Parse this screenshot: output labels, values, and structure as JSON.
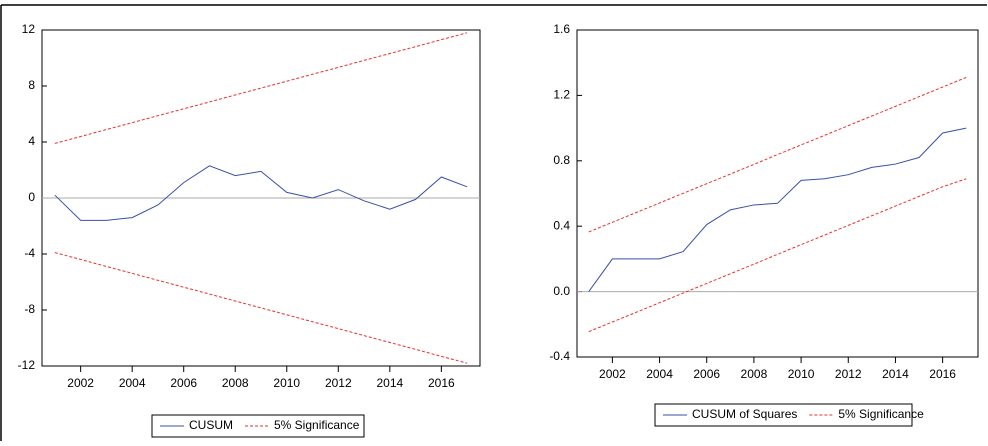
{
  "chart_data": [
    {
      "type": "line",
      "x": [
        2001,
        2002,
        2003,
        2004,
        2005,
        2006,
        2007,
        2008,
        2009,
        2010,
        2011,
        2012,
        2013,
        2014,
        2015,
        2016,
        2017
      ],
      "xlim": [
        2000.5,
        2017.5
      ],
      "xticks": [
        2002,
        2004,
        2006,
        2008,
        2010,
        2012,
        2014,
        2016
      ],
      "ylim": [
        -12,
        12
      ],
      "yticks": [
        -12,
        -8,
        -4,
        0,
        4,
        8,
        12
      ],
      "series": [
        {
          "name": "CUSUM",
          "color": "#3a4fa8",
          "values": [
            0.2,
            -1.6,
            -1.6,
            -1.4,
            -0.5,
            1.1,
            2.3,
            1.6,
            1.9,
            0.4,
            0.0,
            0.6,
            -0.2,
            -0.8,
            -0.1,
            1.5,
            0.8
          ]
        },
        {
          "name": "5% Significance",
          "color": "#e8312f",
          "dashed": true,
          "values": [
            3.9,
            4.39,
            4.89,
            5.38,
            5.88,
            6.37,
            6.86,
            7.36,
            7.85,
            8.34,
            8.84,
            9.33,
            9.83,
            10.32,
            10.81,
            11.31,
            11.8
          ],
          "lower": [
            -3.9,
            -4.39,
            -4.89,
            -5.38,
            -5.88,
            -6.37,
            -6.86,
            -7.36,
            -7.85,
            -8.34,
            -8.84,
            -9.33,
            -9.83,
            -10.32,
            -10.81,
            -11.31,
            -11.8
          ]
        }
      ]
    },
    {
      "type": "line",
      "x": [
        2001,
        2002,
        2003,
        2004,
        2005,
        2006,
        2007,
        2008,
        2009,
        2010,
        2011,
        2012,
        2013,
        2014,
        2015,
        2016,
        2017
      ],
      "xlim": [
        2000.5,
        2017.5
      ],
      "xticks": [
        2002,
        2004,
        2006,
        2008,
        2010,
        2012,
        2014,
        2016
      ],
      "ylim": [
        -0.4,
        1.6
      ],
      "yticks": [
        -0.4,
        {
          "value": 0,
          "label": "0.0"
        },
        0.4,
        0.8,
        1.2,
        1.6
      ],
      "series": [
        {
          "name": "CUSUM of Squares",
          "color": "#3a4fa8",
          "values": [
            0.0,
            0.2,
            0.2,
            0.2,
            0.245,
            0.41,
            0.5,
            0.53,
            0.54,
            0.68,
            0.69,
            0.715,
            0.76,
            0.78,
            0.82,
            0.97,
            1.0
          ]
        },
        {
          "name": "5% Significance",
          "color": "#e8312f",
          "dashed": true,
          "values": [
            0.365,
            0.424,
            0.483,
            0.542,
            0.601,
            0.66,
            0.719,
            0.778,
            0.838,
            0.897,
            0.956,
            1.015,
            1.074,
            1.133,
            1.192,
            1.251,
            1.31
          ],
          "lower": [
            -0.245,
            -0.186,
            -0.127,
            -0.068,
            -0.009,
            0.05,
            0.109,
            0.168,
            0.228,
            0.287,
            0.346,
            0.405,
            0.464,
            0.523,
            0.582,
            0.641,
            0.69
          ]
        }
      ]
    }
  ]
}
